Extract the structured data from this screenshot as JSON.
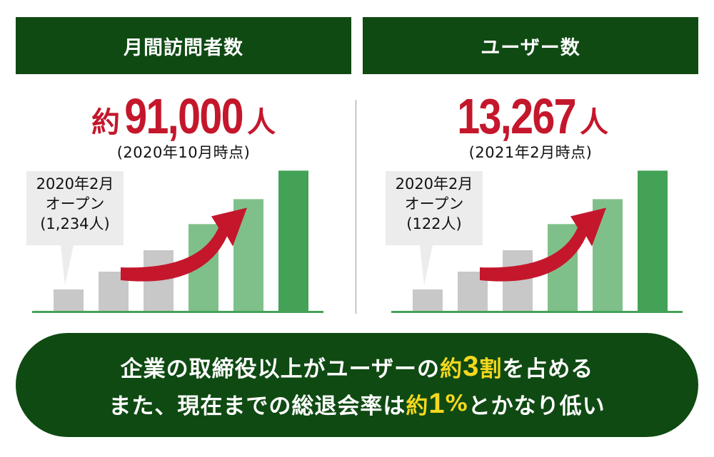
{
  "panels": [
    {
      "header": "月間訪問者数",
      "value_prefix": "約",
      "value": "91,000",
      "value_unit": "人",
      "as_of": "(2020年10月時点)",
      "callout": {
        "line1": "2020年2月",
        "line2": "オープン",
        "line3": "(1,234人)"
      }
    },
    {
      "header": "ユーザー数",
      "value_prefix": "",
      "value": "13,267",
      "value_unit": "人",
      "as_of": "(2021年2月時点)",
      "callout": {
        "line1": "2020年2月",
        "line2": "オープン",
        "line3": "(122人)"
      }
    }
  ],
  "summary": {
    "line1": {
      "before": "企業の取締役以上がユーザーの",
      "hl1": "約",
      "hl_num": "3",
      "hl2": "割",
      "after": "を占める"
    },
    "line2": {
      "before": "また、現在までの総退会率は",
      "hl1": "約",
      "hl_num": "1",
      "hl2": "%",
      "after": "とかなり低い"
    }
  },
  "chart_data": [
    {
      "type": "bar",
      "title": "月間訪問者数",
      "categories": [
        "",
        "",
        "",
        "",
        "",
        ""
      ],
      "values": [
        0.18,
        0.33,
        0.51,
        0.73,
        0.94,
        1.18
      ],
      "bar_colors": [
        "#c8c8c8",
        "#c8c8c8",
        "#c8c8c8",
        "#7fc08a",
        "#7fc08a",
        "#44a257"
      ],
      "axis_color": "#44a257",
      "arrow_color": "#c4172c",
      "ylim": [
        0,
        1.2
      ]
    },
    {
      "type": "bar",
      "title": "ユーザー数",
      "categories": [
        "",
        "",
        "",
        "",
        "",
        ""
      ],
      "values": [
        0.18,
        0.33,
        0.51,
        0.73,
        0.94,
        1.18
      ],
      "bar_colors": [
        "#c8c8c8",
        "#c8c8c8",
        "#c8c8c8",
        "#7fc08a",
        "#7fc08a",
        "#44a257"
      ],
      "axis_color": "#44a257",
      "arrow_color": "#c4172c",
      "ylim": [
        0,
        1.2
      ]
    }
  ]
}
